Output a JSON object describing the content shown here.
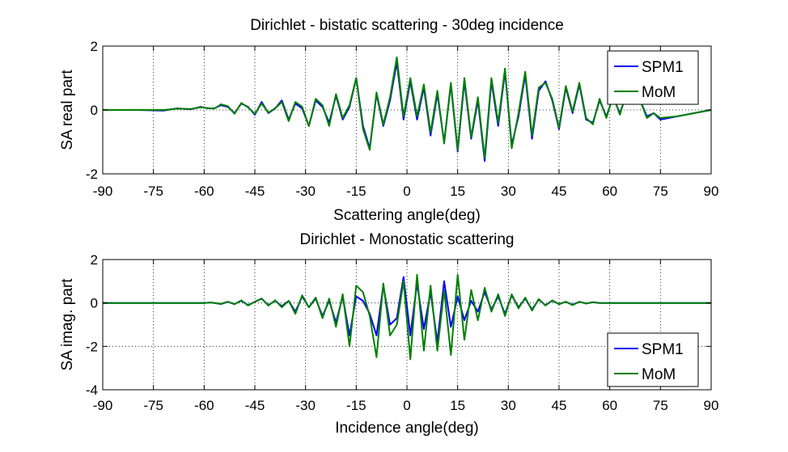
{
  "chart_data": [
    {
      "type": "line",
      "title": "Dirichlet - bistatic scattering - 30deg incidence",
      "xlabel": "Scattering angle(deg)",
      "ylabel": "SA real part",
      "xlim": [
        -90,
        90
      ],
      "ylim": [
        -2,
        2
      ],
      "xticks": [
        -90,
        -75,
        -60,
        -45,
        -30,
        -15,
        0,
        15,
        30,
        45,
        60,
        75,
        90
      ],
      "yticks": [
        -2,
        0,
        2
      ],
      "grid": true,
      "legend_position": "top-right",
      "series": [
        {
          "name": "SPM1",
          "color": "#0000ff",
          "x": [
            -90,
            -80,
            -72,
            -68,
            -64,
            -61,
            -59,
            -57,
            -55,
            -53,
            -51,
            -49,
            -47,
            -45,
            -43,
            -41,
            -39,
            -37,
            -35,
            -33,
            -31,
            -29,
            -27,
            -25,
            -23,
            -21,
            -19,
            -17,
            -15,
            -13,
            -11,
            -9,
            -7,
            -5,
            -3,
            -1,
            1,
            3,
            5,
            7,
            9,
            11,
            13,
            15,
            17,
            19,
            21,
            23,
            25,
            27,
            29,
            31,
            33,
            35,
            37,
            39,
            41,
            43,
            45,
            47,
            49,
            51,
            53,
            55,
            57,
            59,
            61,
            63,
            65,
            67,
            69,
            71,
            73,
            75,
            80,
            85,
            90
          ],
          "y": [
            0,
            0,
            -0.02,
            0.05,
            0.02,
            0.1,
            0.05,
            0.05,
            0.15,
            0.1,
            -0.1,
            0.2,
            0.1,
            -0.15,
            0.25,
            -0.1,
            0.05,
            0.3,
            -0.3,
            0.2,
            0.05,
            -0.5,
            0.3,
            0.1,
            -0.4,
            0.45,
            -0.3,
            0.1,
            1.0,
            -0.5,
            -1.2,
            0.5,
            -0.5,
            0.3,
            1.5,
            -0.3,
            0.9,
            -0.3,
            0.7,
            -0.8,
            0.5,
            -1.0,
            0.8,
            -1.3,
            0.9,
            -0.9,
            0.3,
            -1.6,
            0.9,
            -0.5,
            1.2,
            -1.1,
            -0.2,
            1.1,
            -0.9,
            0.6,
            0.9,
            0.3,
            -0.6,
            0.7,
            -0.1,
            0.8,
            -0.3,
            -0.4,
            0.3,
            -0.2,
            0.4,
            -0.1,
            0.5,
            0.2,
            0.3,
            -0.2,
            -0.1,
            -0.3,
            -0.2,
            -0.1,
            0
          ]
        },
        {
          "name": "MoM",
          "color": "#008000",
          "x": [
            -90,
            -80,
            -72,
            -68,
            -64,
            -61,
            -59,
            -57,
            -55,
            -53,
            -51,
            -49,
            -47,
            -45,
            -43,
            -41,
            -39,
            -37,
            -35,
            -33,
            -31,
            -29,
            -27,
            -25,
            -23,
            -21,
            -19,
            -17,
            -15,
            -13,
            -11,
            -9,
            -7,
            -5,
            -3,
            -1,
            1,
            3,
            5,
            7,
            9,
            11,
            13,
            15,
            17,
            19,
            21,
            23,
            25,
            27,
            29,
            31,
            33,
            35,
            37,
            39,
            41,
            43,
            45,
            47,
            49,
            51,
            53,
            55,
            57,
            59,
            61,
            63,
            65,
            67,
            69,
            71,
            73,
            75,
            80,
            85,
            90
          ],
          "y": [
            0,
            0,
            0,
            0.04,
            0.03,
            0.08,
            0.06,
            0.04,
            0.18,
            0.12,
            -0.12,
            0.22,
            0.08,
            -0.12,
            0.2,
            -0.08,
            0.05,
            0.25,
            -0.35,
            0.25,
            0.1,
            -0.5,
            0.35,
            0.15,
            -0.5,
            0.5,
            -0.25,
            0.15,
            1.0,
            -0.6,
            -1.25,
            0.55,
            -0.45,
            0.4,
            1.65,
            -0.2,
            1.0,
            -0.2,
            0.8,
            -0.7,
            0.6,
            -1.05,
            0.85,
            -1.25,
            1.0,
            -0.85,
            0.4,
            -1.5,
            1.0,
            -0.4,
            1.3,
            -1.2,
            -0.1,
            1.2,
            -0.8,
            0.7,
            0.85,
            0.35,
            -0.55,
            0.75,
            -0.05,
            0.85,
            -0.25,
            -0.45,
            0.35,
            -0.25,
            0.45,
            -0.15,
            0.55,
            0.25,
            0.3,
            -0.25,
            -0.1,
            -0.25,
            -0.2,
            -0.1,
            0
          ]
        }
      ]
    },
    {
      "type": "line",
      "title": "Dirichlet - Monostatic scattering",
      "xlabel": "Incidence angle(deg)",
      "ylabel": "SA imag. part",
      "xlim": [
        -90,
        90
      ],
      "ylim": [
        -4,
        2
      ],
      "xticks": [
        -90,
        -75,
        -60,
        -45,
        -30,
        -15,
        0,
        15,
        30,
        45,
        60,
        75,
        90
      ],
      "yticks": [
        -4,
        -2,
        0,
        2
      ],
      "grid": true,
      "legend_position": "bottom-right",
      "series": [
        {
          "name": "SPM1",
          "color": "#0000ff",
          "x": [
            -90,
            -60,
            -58,
            -55,
            -53,
            -51,
            -49,
            -47,
            -45,
            -43,
            -41,
            -39,
            -37,
            -35,
            -33,
            -31,
            -29,
            -27,
            -25,
            -23,
            -21,
            -19,
            -17,
            -15,
            -13,
            -11,
            -9,
            -7,
            -5,
            -3,
            -1,
            1,
            3,
            5,
            7,
            9,
            11,
            13,
            15,
            17,
            19,
            21,
            23,
            25,
            27,
            29,
            31,
            33,
            35,
            37,
            39,
            41,
            43,
            45,
            47,
            49,
            51,
            53,
            55,
            57,
            60,
            90
          ],
          "y": [
            0,
            0,
            0.02,
            -0.05,
            0.05,
            -0.05,
            0.1,
            -0.1,
            0.05,
            0.2,
            -0.1,
            0.1,
            -0.15,
            0.1,
            -0.4,
            0.3,
            -0.2,
            0.2,
            -0.6,
            0.1,
            -0.9,
            0.3,
            -1.5,
            0.3,
            0.1,
            -0.5,
            -1.5,
            0.8,
            -1.0,
            -0.7,
            1.2,
            -1.5,
            0.9,
            -1.2,
            0.5,
            -1.8,
            1.0,
            -1.1,
            0.3,
            -0.8,
            0.1,
            -0.4,
            0.5,
            -0.3,
            0.3,
            -0.5,
            0.35,
            -0.2,
            0.2,
            -0.3,
            0.15,
            -0.1,
            0.1,
            -0.05,
            0.05,
            -0.08,
            0.05,
            -0.02,
            0.03,
            0,
            0,
            0
          ]
        },
        {
          "name": "MoM",
          "color": "#008000",
          "x": [
            -90,
            -60,
            -58,
            -55,
            -53,
            -51,
            -49,
            -47,
            -45,
            -43,
            -41,
            -39,
            -37,
            -35,
            -33,
            -31,
            -29,
            -27,
            -25,
            -23,
            -21,
            -19,
            -17,
            -15,
            -13,
            -11,
            -9,
            -7,
            -5,
            -3,
            -1,
            1,
            3,
            5,
            7,
            9,
            11,
            13,
            15,
            17,
            19,
            21,
            23,
            25,
            27,
            29,
            31,
            33,
            35,
            37,
            39,
            41,
            43,
            45,
            47,
            49,
            51,
            53,
            55,
            57,
            60,
            90
          ],
          "y": [
            0,
            0,
            0.02,
            -0.04,
            0.06,
            -0.06,
            0.12,
            -0.12,
            0.06,
            0.2,
            -0.12,
            0.12,
            -0.2,
            0.1,
            -0.5,
            0.35,
            -0.2,
            0.25,
            -0.7,
            0.2,
            -1.1,
            0.4,
            -2.0,
            0.8,
            0.5,
            -0.6,
            -2.5,
            0.9,
            -1.5,
            -1.0,
            1.0,
            -2.6,
            1.3,
            -2.2,
            0.8,
            -2.2,
            0.6,
            -2.4,
            1.3,
            -1.7,
            0.6,
            -0.8,
            0.7,
            -0.4,
            0.4,
            -0.6,
            0.4,
            -0.25,
            0.25,
            -0.35,
            0.18,
            -0.12,
            0.12,
            -0.06,
            0.06,
            -0.1,
            0.06,
            -0.03,
            0.04,
            0,
            0,
            0
          ]
        }
      ]
    }
  ]
}
